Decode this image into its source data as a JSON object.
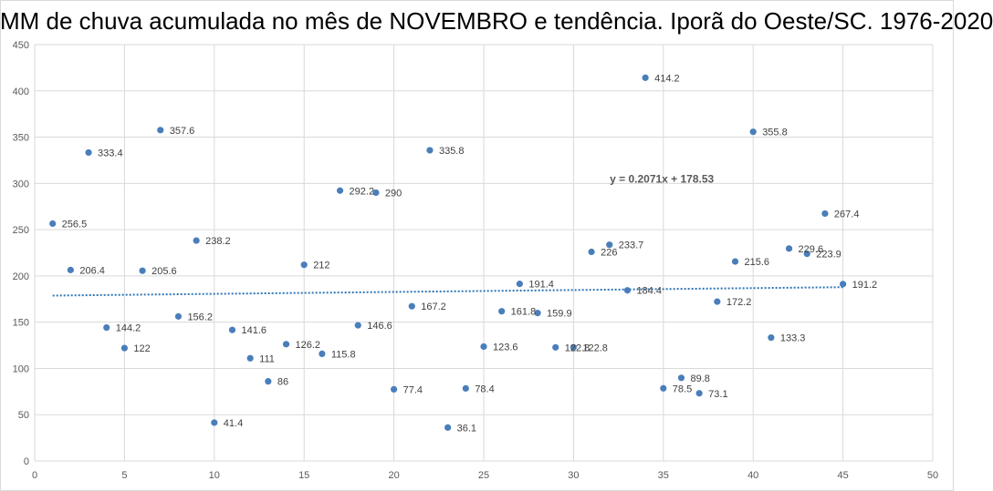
{
  "chart_data": {
    "type": "scatter",
    "title": "MM de chuva acumulada no mês de NOVEMBRO e tendência. Iporã do Oeste/SC. 1976-2020",
    "xlabel": "",
    "ylabel": "",
    "xlim": [
      0,
      50
    ],
    "ylim": [
      0,
      450
    ],
    "x_ticks": [
      0,
      5,
      10,
      15,
      20,
      25,
      30,
      35,
      40,
      45,
      50
    ],
    "y_ticks": [
      0,
      50,
      100,
      150,
      200,
      250,
      300,
      350,
      400,
      450
    ],
    "grid": true,
    "legend": "none",
    "colors": {
      "points": "#4a7ebb",
      "trend": "#2e75b6",
      "grid": "#d9d9d9"
    },
    "points": [
      {
        "x": 1,
        "y": 256.5,
        "label": "256.5"
      },
      {
        "x": 2,
        "y": 206.4,
        "label": "206.4"
      },
      {
        "x": 3,
        "y": 333.4,
        "label": "333.4"
      },
      {
        "x": 4,
        "y": 144.2,
        "label": "144.2"
      },
      {
        "x": 5,
        "y": 122,
        "label": "122"
      },
      {
        "x": 6,
        "y": 205.6,
        "label": "205.6"
      },
      {
        "x": 7,
        "y": 357.6,
        "label": "357.6"
      },
      {
        "x": 8,
        "y": 156.2,
        "label": "156.2"
      },
      {
        "x": 9,
        "y": 238.2,
        "label": "238.2"
      },
      {
        "x": 10,
        "y": 41.4,
        "label": "41.4"
      },
      {
        "x": 11,
        "y": 141.6,
        "label": "141.6"
      },
      {
        "x": 12,
        "y": 111,
        "label": "111"
      },
      {
        "x": 13,
        "y": 86,
        "label": "86"
      },
      {
        "x": 14,
        "y": 126.2,
        "label": "126.2"
      },
      {
        "x": 15,
        "y": 212,
        "label": "212"
      },
      {
        "x": 16,
        "y": 115.8,
        "label": "115.8"
      },
      {
        "x": 17,
        "y": 292.2,
        "label": "292.2"
      },
      {
        "x": 18,
        "y": 146.6,
        "label": "146.6"
      },
      {
        "x": 19,
        "y": 290,
        "label": "290"
      },
      {
        "x": 20,
        "y": 77.4,
        "label": "77.4"
      },
      {
        "x": 21,
        "y": 167.2,
        "label": "167.2"
      },
      {
        "x": 22,
        "y": 335.8,
        "label": "335.8"
      },
      {
        "x": 23,
        "y": 36.1,
        "label": "36.1"
      },
      {
        "x": 24,
        "y": 78.4,
        "label": "78.4"
      },
      {
        "x": 25,
        "y": 123.6,
        "label": "123.6"
      },
      {
        "x": 26,
        "y": 161.8,
        "label": "161.8"
      },
      {
        "x": 27,
        "y": 191.4,
        "label": "191.4"
      },
      {
        "x": 28,
        "y": 159.9,
        "label": "159.9"
      },
      {
        "x": 29,
        "y": 122.8,
        "label": "122.8"
      },
      {
        "x": 30,
        "y": 122.8,
        "label": "122.8"
      },
      {
        "x": 31,
        "y": 226,
        "label": "226"
      },
      {
        "x": 32,
        "y": 233.7,
        "label": "233.7"
      },
      {
        "x": 33,
        "y": 184.4,
        "label": "184.4"
      },
      {
        "x": 34,
        "y": 414.2,
        "label": "414.2"
      },
      {
        "x": 35,
        "y": 78.5,
        "label": "78.5"
      },
      {
        "x": 36,
        "y": 89.8,
        "label": "89.8"
      },
      {
        "x": 37,
        "y": 73.1,
        "label": "73.1"
      },
      {
        "x": 38,
        "y": 172.2,
        "label": "172.2"
      },
      {
        "x": 39,
        "y": 215.6,
        "label": "215.6"
      },
      {
        "x": 40,
        "y": 355.8,
        "label": "355.8"
      },
      {
        "x": 41,
        "y": 133.3,
        "label": "133.3"
      },
      {
        "x": 42,
        "y": 229.6,
        "label": "229.6"
      },
      {
        "x": 43,
        "y": 223.9,
        "label": "223.9"
      },
      {
        "x": 44,
        "y": 267.4,
        "label": "267.4"
      },
      {
        "x": 45,
        "y": 191.2,
        "label": "191.2"
      }
    ],
    "trendline": {
      "type": "linear",
      "slope": 0.2071,
      "intercept": 178.53,
      "x_range": [
        1,
        45
      ],
      "equation": "y = 0.2071x + 178.53",
      "equation_anchor": {
        "x": 34,
        "y": 300
      }
    }
  }
}
